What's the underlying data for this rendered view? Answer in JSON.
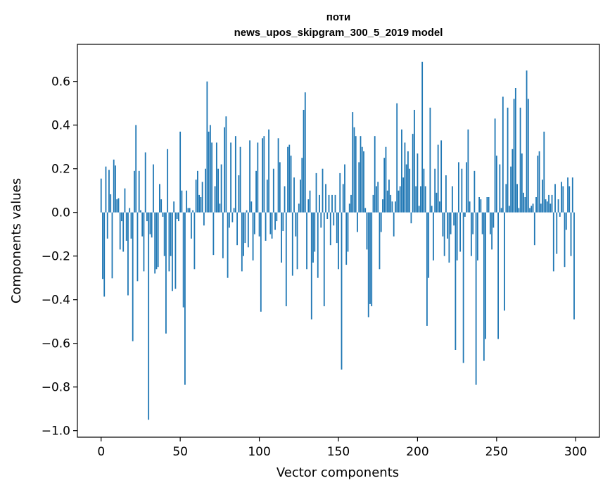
{
  "chart_data": {
    "type": "bar",
    "title_line1": "поти",
    "title_line2": "news_upos_skipgram_300_5_2019 model",
    "xlabel": "Vector components",
    "ylabel": "Components values",
    "xlim": [
      -15,
      315
    ],
    "ylim": [
      -1.03,
      0.77
    ],
    "xticks": [
      0,
      50,
      100,
      150,
      200,
      250,
      300
    ],
    "xtick_labels": [
      "0",
      "50",
      "100",
      "150",
      "200",
      "250",
      "300"
    ],
    "yticks": [
      -1.0,
      -0.8,
      -0.6,
      -0.4,
      -0.2,
      0.0,
      0.2,
      0.4,
      0.6
    ],
    "ytick_labels": [
      "−1.0",
      "−0.8",
      "−0.6",
      "−0.4",
      "−0.2",
      "0.0",
      "0.2",
      "0.4",
      "0.6"
    ],
    "bar_color": "#1f77b4",
    "values": [
      0.155,
      -0.305,
      -0.386,
      0.21,
      -0.12,
      0.195,
      0.083,
      -0.302,
      0.242,
      0.215,
      0.06,
      0.065,
      -0.17,
      -0.04,
      -0.18,
      0.11,
      -0.13,
      -0.38,
      0.02,
      -0.12,
      -0.59,
      0.19,
      0.4,
      -0.315,
      0.19,
      0.01,
      -0.11,
      -0.27,
      0.275,
      -0.04,
      -0.95,
      -0.1,
      -0.115,
      0.22,
      -0.28,
      -0.26,
      -0.25,
      0.13,
      0.06,
      -0.02,
      -0.2,
      -0.555,
      0.29,
      -0.27,
      -0.2,
      -0.36,
      0.05,
      -0.35,
      -0.03,
      -0.04,
      0.37,
      0.1,
      -0.435,
      -0.79,
      0.1,
      0.02,
      0.02,
      -0.12,
      0.01,
      -0.26,
      0.15,
      0.19,
      0.08,
      0.07,
      0.14,
      -0.06,
      0.2,
      0.6,
      0.37,
      0.4,
      0.32,
      -0.195,
      0.12,
      0.32,
      0.2,
      0.04,
      0.22,
      -0.21,
      0.39,
      0.44,
      -0.3,
      -0.07,
      0.32,
      -0.045,
      0.02,
      0.35,
      -0.15,
      0.17,
      0.3,
      -0.27,
      -0.2,
      -0.14,
      0.01,
      -0.16,
      0.33,
      0.05,
      -0.22,
      -0.1,
      0.19,
      0.32,
      -0.11,
      -0.455,
      0.34,
      0.35,
      -0.13,
      0.15,
      0.38,
      -0.1,
      -0.12,
      0.2,
      -0.08,
      -0.04,
      0.34,
      0.23,
      -0.23,
      -0.085,
      0.12,
      -0.43,
      0.3,
      0.31,
      0.26,
      -0.29,
      0.16,
      -0.11,
      -0.26,
      0.04,
      0.15,
      0.25,
      0.47,
      0.55,
      -0.26,
      0.06,
      0.1,
      -0.49,
      -0.23,
      -0.18,
      0.18,
      -0.3,
      0.08,
      -0.07,
      0.2,
      -0.43,
      0.13,
      -0.03,
      0.08,
      -0.15,
      0.08,
      -0.06,
      0.08,
      -0.14,
      -0.26,
      0.18,
      -0.72,
      0.13,
      0.22,
      -0.24,
      -0.18,
      0.04,
      0.08,
      0.46,
      0.39,
      0.35,
      -0.09,
      0.23,
      0.35,
      0.3,
      0.28,
      0.02,
      -0.17,
      -0.48,
      -0.42,
      -0.43,
      0.08,
      0.35,
      0.12,
      0.14,
      -0.26,
      -0.09,
      0.06,
      0.25,
      0.3,
      0.1,
      0.15,
      0.08,
      0.05,
      -0.11,
      0.05,
      0.5,
      0.1,
      0.12,
      0.38,
      0.16,
      0.32,
      0.22,
      0.28,
      0.2,
      -0.05,
      0.36,
      0.47,
      0.12,
      0.27,
      0.03,
      0.12,
      0.69,
      0.2,
      0.12,
      -0.52,
      -0.3,
      0.48,
      0.03,
      -0.22,
      0.2,
      0.09,
      0.31,
      0.05,
      0.33,
      -0.11,
      -0.2,
      0.17,
      -0.12,
      -0.23,
      -0.1,
      0.12,
      -0.06,
      -0.63,
      -0.22,
      0.23,
      -0.18,
      0.2,
      -0.69,
      -0.02,
      0.23,
      0.38,
      0.05,
      -0.2,
      -0.1,
      0.19,
      -0.79,
      -0.22,
      0.07,
      0.06,
      -0.1,
      -0.68,
      -0.58,
      0.07,
      0.07,
      -0.1,
      -0.17,
      -0.07,
      0.43,
      0.26,
      -0.58,
      0.22,
      0.02,
      0.53,
      -0.45,
      0.13,
      0.48,
      0.03,
      0.21,
      0.29,
      0.52,
      0.57,
      0.13,
      0.02,
      0.48,
      0.27,
      0.09,
      0.07,
      0.65,
      0.52,
      0.02,
      0.03,
      0.04,
      -0.15,
      0.07,
      0.26,
      0.28,
      0.04,
      0.15,
      0.37,
      0.06,
      0.05,
      0.08,
      0.04,
      0.08,
      -0.27,
      0.13,
      -0.19,
      0.06,
      -0.02,
      0.14,
      0.12,
      -0.25,
      -0.08,
      0.16,
      0.12,
      -0.2,
      0.16,
      -0.49
    ]
  }
}
